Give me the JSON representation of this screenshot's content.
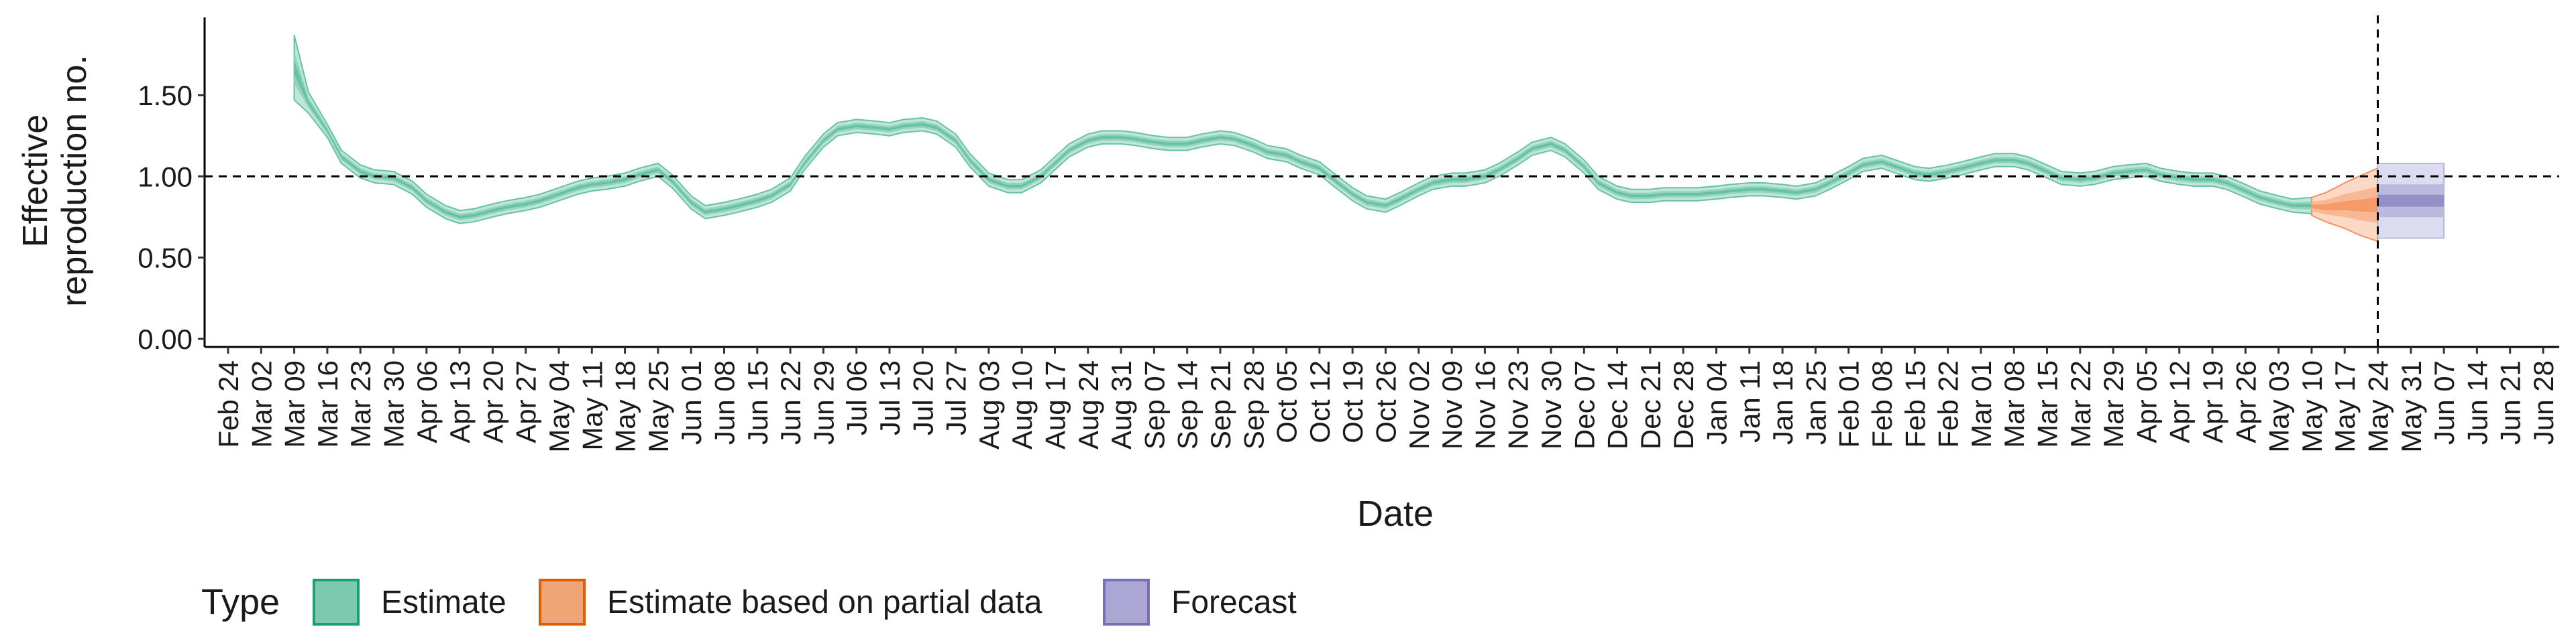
{
  "chart_data": {
    "type": "line",
    "ylabel": [
      "Effective",
      "reproduction no."
    ],
    "xlabel": "Date",
    "ylim": [
      -0.05,
      1.97
    ],
    "y_ticks": [
      0.0,
      0.5,
      1.0,
      1.5
    ],
    "y_tick_labels": [
      "0.00",
      "0.50",
      "1.00",
      "1.50"
    ],
    "x_ticks": [
      "Feb 24",
      "Mar 02",
      "Mar 09",
      "Mar 16",
      "Mar 23",
      "Mar 30",
      "Apr 06",
      "Apr 13",
      "Apr 20",
      "Apr 27",
      "May 04",
      "May 11",
      "May 18",
      "May 25",
      "Jun 01",
      "Jun 08",
      "Jun 15",
      "Jun 22",
      "Jun 29",
      "Jul 06",
      "Jul 13",
      "Jul 20",
      "Jul 27",
      "Aug 03",
      "Aug 10",
      "Aug 17",
      "Aug 24",
      "Aug 31",
      "Sep 07",
      "Sep 14",
      "Sep 21",
      "Sep 28",
      "Oct 05",
      "Oct 12",
      "Oct 19",
      "Oct 26",
      "Nov 02",
      "Nov 09",
      "Nov 16",
      "Nov 23",
      "Nov 30",
      "Dec 07",
      "Dec 14",
      "Dec 21",
      "Dec 28",
      "Jan 04",
      "Jan 11",
      "Jan 18",
      "Jan 25",
      "Feb 01",
      "Feb 08",
      "Feb 15",
      "Feb 22",
      "Mar 01",
      "Mar 08",
      "Mar 15",
      "Mar 22",
      "Mar 29",
      "Apr 05",
      "Apr 12",
      "Apr 19",
      "Apr 26",
      "May 03",
      "May 10",
      "May 17",
      "May 24",
      "May 31",
      "Jun 07",
      "Jun 14",
      "Jun 21",
      "Jun 28"
    ],
    "reference_line_y": 1.0,
    "forecast_start": "May 24",
    "legend": {
      "title": "Type",
      "position": "bottom",
      "entries": [
        {
          "name": "Estimate",
          "fill": "#7dc9b0",
          "stroke": "#1b9e77"
        },
        {
          "name": "Estimate based on partial data",
          "fill": "#efa575",
          "stroke": "#d95f02"
        },
        {
          "name": "Forecast",
          "fill": "#aba6d3",
          "stroke": "#7570b3"
        }
      ]
    },
    "series": [
      {
        "name": "Estimate",
        "color": "#66c2a5",
        "x": [
          "Mar 09",
          "Mar 12",
          "Mar 16",
          "Mar 19",
          "Mar 23",
          "Mar 26",
          "Mar 30",
          "Apr 03",
          "Apr 06",
          "Apr 10",
          "Apr 13",
          "Apr 16",
          "Apr 20",
          "Apr 23",
          "Apr 27",
          "Apr 30",
          "May 04",
          "May 08",
          "May 11",
          "May 14",
          "May 18",
          "May 21",
          "May 25",
          "May 28",
          "Jun 01",
          "Jun 04",
          "Jun 08",
          "Jun 11",
          "Jun 15",
          "Jun 18",
          "Jun 22",
          "Jun 25",
          "Jun 29",
          "Jul 02",
          "Jul 06",
          "Jul 10",
          "Jul 13",
          "Jul 16",
          "Jul 20",
          "Jul 23",
          "Jul 27",
          "Jul 30",
          "Aug 03",
          "Aug 07",
          "Aug 10",
          "Aug 14",
          "Aug 17",
          "Aug 20",
          "Aug 24",
          "Aug 27",
          "Aug 31",
          "Sep 03",
          "Sep 07",
          "Sep 10",
          "Sep 14",
          "Sep 17",
          "Sep 21",
          "Sep 24",
          "Sep 28",
          "Oct 01",
          "Oct 05",
          "Oct 08",
          "Oct 12",
          "Oct 15",
          "Oct 19",
          "Oct 22",
          "Oct 26",
          "Oct 29",
          "Nov 02",
          "Nov 05",
          "Nov 09",
          "Nov 12",
          "Nov 16",
          "Nov 19",
          "Nov 23",
          "Nov 26",
          "Nov 30",
          "Dec 03",
          "Dec 07",
          "Dec 10",
          "Dec 14",
          "Dec 17",
          "Dec 21",
          "Dec 24",
          "Dec 28",
          "Dec 31",
          "Jan 04",
          "Jan 07",
          "Jan 11",
          "Jan 14",
          "Jan 18",
          "Jan 21",
          "Jan 25",
          "Jan 28",
          "Feb 01",
          "Feb 04",
          "Feb 08",
          "Feb 11",
          "Feb 15",
          "Feb 18",
          "Feb 22",
          "Feb 25",
          "Mar 01",
          "Mar 04",
          "Mar 08",
          "Mar 11",
          "Mar 15",
          "Mar 18",
          "Mar 22",
          "Mar 25",
          "Mar 29",
          "Apr 01",
          "Apr 05",
          "Apr 08",
          "Apr 12",
          "Apr 15",
          "Apr 19",
          "Apr 22",
          "Apr 26",
          "Apr 29",
          "May 03",
          "May 06",
          "May 10"
        ],
        "y": [
          1.65,
          1.45,
          1.28,
          1.12,
          1.03,
          1.0,
          0.99,
          0.93,
          0.85,
          0.78,
          0.75,
          0.76,
          0.79,
          0.81,
          0.83,
          0.85,
          0.89,
          0.93,
          0.95,
          0.96,
          0.98,
          1.01,
          1.04,
          0.97,
          0.84,
          0.78,
          0.8,
          0.82,
          0.85,
          0.88,
          0.95,
          1.08,
          1.22,
          1.29,
          1.31,
          1.3,
          1.29,
          1.31,
          1.32,
          1.3,
          1.22,
          1.1,
          0.98,
          0.94,
          0.94,
          1.0,
          1.08,
          1.16,
          1.22,
          1.24,
          1.24,
          1.23,
          1.21,
          1.2,
          1.2,
          1.22,
          1.24,
          1.23,
          1.19,
          1.15,
          1.13,
          1.09,
          1.05,
          0.98,
          0.89,
          0.84,
          0.82,
          0.86,
          0.92,
          0.96,
          0.98,
          0.98,
          1.0,
          1.04,
          1.11,
          1.17,
          1.2,
          1.16,
          1.06,
          0.96,
          0.9,
          0.88,
          0.88,
          0.89,
          0.89,
          0.89,
          0.9,
          0.91,
          0.92,
          0.92,
          0.91,
          0.9,
          0.92,
          0.96,
          1.02,
          1.07,
          1.09,
          1.06,
          1.02,
          1.01,
          1.03,
          1.05,
          1.08,
          1.1,
          1.1,
          1.08,
          1.03,
          0.99,
          0.98,
          0.99,
          1.02,
          1.03,
          1.04,
          1.01,
          0.99,
          0.98,
          0.98,
          0.96,
          0.91,
          0.87,
          0.84,
          0.82,
          0.82
        ],
        "lower": [
          1.47,
          1.39,
          1.24,
          1.08,
          0.99,
          0.96,
          0.95,
          0.89,
          0.81,
          0.74,
          0.71,
          0.72,
          0.75,
          0.77,
          0.79,
          0.81,
          0.85,
          0.89,
          0.91,
          0.92,
          0.94,
          0.97,
          1.0,
          0.93,
          0.8,
          0.74,
          0.76,
          0.78,
          0.81,
          0.84,
          0.91,
          1.04,
          1.18,
          1.25,
          1.27,
          1.26,
          1.25,
          1.27,
          1.28,
          1.26,
          1.18,
          1.06,
          0.94,
          0.9,
          0.9,
          0.96,
          1.04,
          1.12,
          1.18,
          1.2,
          1.2,
          1.19,
          1.17,
          1.16,
          1.16,
          1.18,
          1.2,
          1.19,
          1.15,
          1.11,
          1.09,
          1.05,
          1.01,
          0.94,
          0.85,
          0.8,
          0.78,
          0.82,
          0.88,
          0.92,
          0.94,
          0.94,
          0.96,
          1.0,
          1.07,
          1.13,
          1.16,
          1.12,
          1.02,
          0.92,
          0.86,
          0.84,
          0.84,
          0.85,
          0.85,
          0.85,
          0.86,
          0.87,
          0.88,
          0.88,
          0.87,
          0.86,
          0.88,
          0.92,
          0.98,
          1.03,
          1.05,
          1.02,
          0.98,
          0.97,
          0.99,
          1.01,
          1.04,
          1.06,
          1.06,
          1.04,
          0.99,
          0.95,
          0.94,
          0.95,
          0.98,
          0.99,
          1.0,
          0.97,
          0.95,
          0.94,
          0.94,
          0.92,
          0.87,
          0.83,
          0.8,
          0.78,
          0.77
        ],
        "upper": [
          1.87,
          1.52,
          1.32,
          1.16,
          1.07,
          1.04,
          1.03,
          0.97,
          0.89,
          0.82,
          0.79,
          0.8,
          0.83,
          0.85,
          0.87,
          0.89,
          0.93,
          0.97,
          0.99,
          1.0,
          1.02,
          1.05,
          1.08,
          1.01,
          0.88,
          0.82,
          0.84,
          0.86,
          0.89,
          0.92,
          0.99,
          1.12,
          1.26,
          1.33,
          1.35,
          1.34,
          1.33,
          1.35,
          1.36,
          1.34,
          1.26,
          1.14,
          1.02,
          0.98,
          0.98,
          1.04,
          1.12,
          1.2,
          1.26,
          1.28,
          1.28,
          1.27,
          1.25,
          1.24,
          1.24,
          1.26,
          1.28,
          1.27,
          1.23,
          1.19,
          1.17,
          1.13,
          1.09,
          1.02,
          0.93,
          0.88,
          0.86,
          0.9,
          0.96,
          1.0,
          1.02,
          1.02,
          1.04,
          1.08,
          1.15,
          1.21,
          1.24,
          1.2,
          1.1,
          1.0,
          0.94,
          0.92,
          0.92,
          0.93,
          0.93,
          0.93,
          0.94,
          0.95,
          0.96,
          0.96,
          0.95,
          0.94,
          0.96,
          1.0,
          1.06,
          1.11,
          1.13,
          1.1,
          1.06,
          1.05,
          1.07,
          1.09,
          1.12,
          1.14,
          1.14,
          1.12,
          1.07,
          1.03,
          1.02,
          1.03,
          1.06,
          1.07,
          1.08,
          1.05,
          1.03,
          1.02,
          1.02,
          1.0,
          0.95,
          0.91,
          0.88,
          0.86,
          0.87
        ]
      },
      {
        "name": "Estimate based on partial data",
        "color": "#fc8d62",
        "x": [
          "May 10",
          "May 13",
          "May 17",
          "May 20",
          "May 24"
        ],
        "y": [
          0.82,
          0.82,
          0.82,
          0.82,
          0.82
        ],
        "lower": [
          0.76,
          0.72,
          0.68,
          0.64,
          0.6
        ],
        "upper": [
          0.87,
          0.9,
          0.96,
          1.0,
          1.05
        ]
      },
      {
        "name": "Forecast",
        "color": "#8da0cb",
        "x": [
          "May 24",
          "Jun 07"
        ],
        "y": [
          0.82,
          0.82
        ],
        "lower": [
          0.62,
          0.62
        ],
        "upper": [
          1.08,
          1.08
        ]
      }
    ]
  }
}
